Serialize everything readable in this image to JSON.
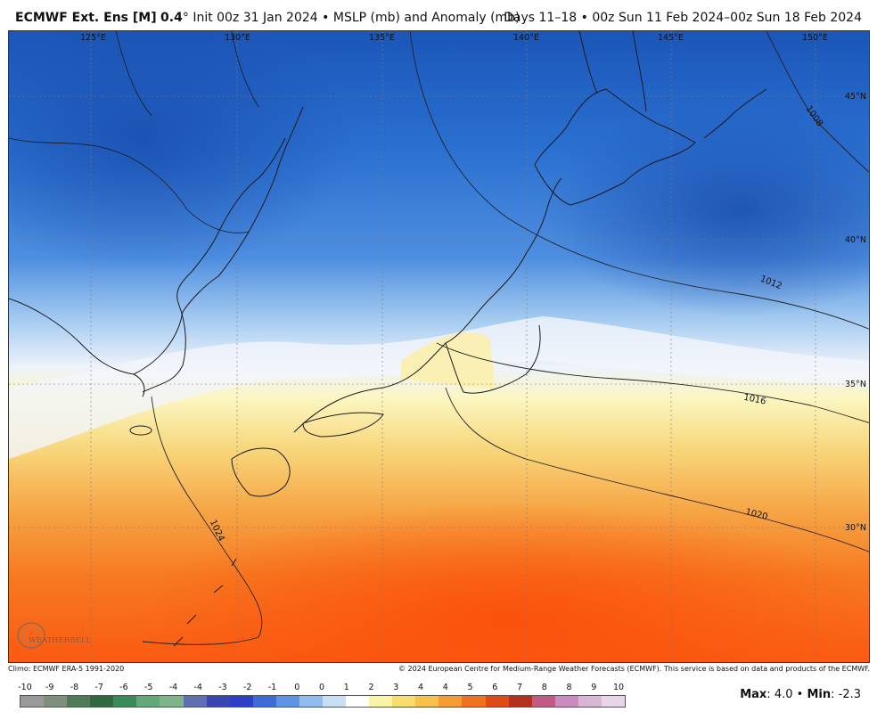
{
  "title": {
    "model": "ECMWF Ext. Ens [M]",
    "resolution": "0.4",
    "degree_sign": "°",
    "init": "Init 00z 31 Jan 2024",
    "separator": "•",
    "field": "MSLP (mb) and Anomaly (mb)",
    "days": "Days 11–18",
    "valid": "00z Sun 11 Feb 2024–00z Sun 18 Feb 2024"
  },
  "map": {
    "lon_labels": [
      "125°E",
      "130°E",
      "135°E",
      "140°E",
      "145°E",
      "150°E"
    ],
    "lat_labels": [
      "45°N",
      "40°N",
      "35°N",
      "30°N"
    ],
    "isobar_labels": [
      "1008",
      "1012",
      "1016",
      "1020",
      "1024"
    ],
    "logo_text": "WEATHERBELL",
    "colors": {
      "deep_blue": "#1f5fc4",
      "mid_blue": "#3b82dc",
      "light_blue": "#9cc6ef",
      "near_zero": "#eef2fb",
      "pale_yellow": "#f8f3b0",
      "orange": "#f59a3a",
      "deep_orange": "#fa5a12",
      "land_outline": "#222222"
    }
  },
  "footer": {
    "climo": "Climo: ECMWF ERA-5 1991-2020",
    "copyright": "© 2024 European Centre for Medium-Range Weather Forecasts (ECMWF). This service is based on data and products of the ECMWF."
  },
  "colorbar": {
    "labels": [
      "-10",
      "-9",
      "-8",
      "-7",
      "-6",
      "-5",
      "-4",
      "-4",
      "-3",
      "-2",
      "-1",
      "0",
      "0",
      "1",
      "2",
      "3",
      "4",
      "4",
      "5",
      "6",
      "7",
      "8",
      "8",
      "9",
      "10"
    ],
    "colors": [
      "#9a9a9a",
      "#7e8f7e",
      "#4f7a55",
      "#2f6a3e",
      "#3a8a5a",
      "#62a878",
      "#7fb38a",
      "#5f6fb0",
      "#3a46b0",
      "#2c3fc8",
      "#3e6ad6",
      "#5f93e6",
      "#8fbdf2",
      "#c7e0f8",
      "#ffffff",
      "#fbf3a8",
      "#f7dc6e",
      "#f5c24a",
      "#f49b32",
      "#f0711e",
      "#e04a16",
      "#b42f1c",
      "#c25a86",
      "#c98bc0",
      "#d7b6d6",
      "#e8d5ea"
    ]
  },
  "stats": {
    "max_label": "Max",
    "max_value": "4.0",
    "min_label": "Min",
    "min_value": "-2.3"
  }
}
